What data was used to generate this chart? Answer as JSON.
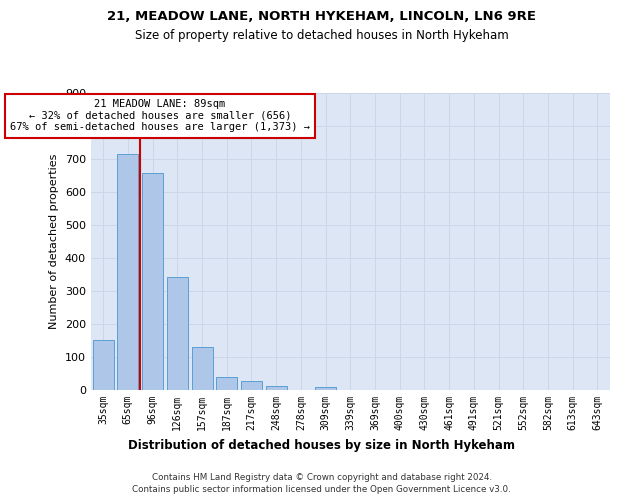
{
  "title1": "21, MEADOW LANE, NORTH HYKEHAM, LINCOLN, LN6 9RE",
  "title2": "Size of property relative to detached houses in North Hykeham",
  "xlabel": "Distribution of detached houses by size in North Hykeham",
  "ylabel": "Number of detached properties",
  "categories": [
    "35sqm",
    "65sqm",
    "96sqm",
    "126sqm",
    "157sqm",
    "187sqm",
    "217sqm",
    "248sqm",
    "278sqm",
    "309sqm",
    "339sqm",
    "369sqm",
    "400sqm",
    "430sqm",
    "461sqm",
    "491sqm",
    "521sqm",
    "552sqm",
    "582sqm",
    "613sqm",
    "643sqm"
  ],
  "values": [
    150,
    713,
    655,
    343,
    130,
    40,
    28,
    11,
    0,
    8,
    0,
    0,
    0,
    0,
    0,
    0,
    0,
    0,
    0,
    0,
    0
  ],
  "bar_color": "#aec6e8",
  "bar_edge_color": "#5a9fd4",
  "vline_x": 1.5,
  "vline_color": "#cc0000",
  "annotation_line1": "21 MEADOW LANE: 89sqm",
  "annotation_line2": "← 32% of detached houses are smaller (656)",
  "annotation_line3": "67% of semi-detached houses are larger (1,373) →",
  "ann_box_color": "#ffffff",
  "ann_edge_color": "#cc0000",
  "ylim_max": 900,
  "yticks": [
    0,
    100,
    200,
    300,
    400,
    500,
    600,
    700,
    800,
    900
  ],
  "grid_color": "#ccd6e8",
  "bg_color": "#dce6f4",
  "footer1": "Contains HM Land Registry data © Crown copyright and database right 2024.",
  "footer2": "Contains public sector information licensed under the Open Government Licence v3.0."
}
